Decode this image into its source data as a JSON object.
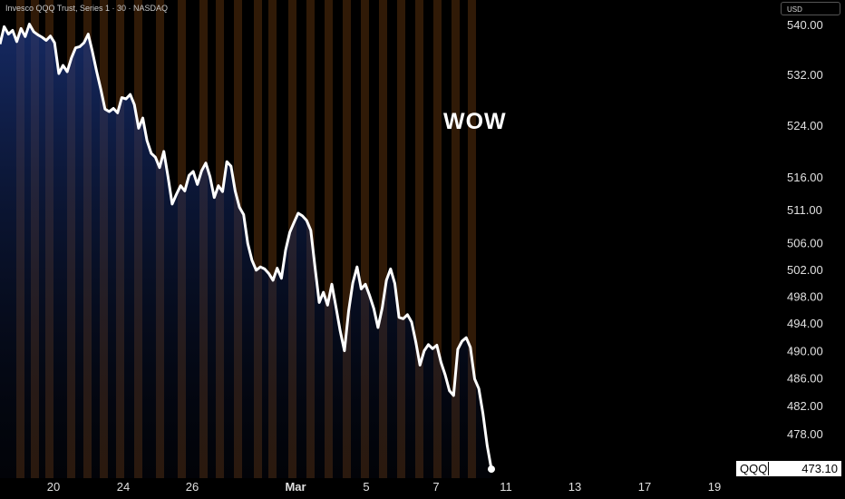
{
  "header": {
    "symbol_line": "Invesco QQQ Trust, Series 1 · 30 · NASDAQ"
  },
  "currency": "USD",
  "last_price": {
    "symbol": "QQQ",
    "value": "473.10"
  },
  "annotation": {
    "text": "WOW"
  },
  "colors": {
    "background": "#000000",
    "line": "#ffffff",
    "gradient_top": "#1e3a8a",
    "session_band": "#6b3a10",
    "axis_text": "#e0e0e0"
  },
  "chart_data": {
    "type": "line",
    "y_axis": {
      "ticks": [
        540.0,
        532.0,
        524.0,
        516.0,
        511.0,
        506.0,
        502.0,
        498.0,
        494.0,
        490.0,
        486.0,
        482.0,
        478.0
      ],
      "tick_labels": [
        "540.00",
        "532.00",
        "524.00",
        "516.00",
        "511.00",
        "506.00",
        "502.00",
        "498.00",
        "494.00",
        "490.00",
        "486.00",
        "482.00",
        "478.00"
      ],
      "scale": "log"
    },
    "x_axis": {
      "tick_labels": [
        "20",
        "24",
        "26",
        "Mar",
        "5",
        "7",
        "11",
        "13",
        "17",
        "19"
      ]
    },
    "series": [
      {
        "values": [
          537.0,
          539.8,
          538.6,
          539.2,
          537.4,
          539.5,
          538.2,
          540.2,
          539.0,
          538.5,
          538.1,
          537.6,
          538.3,
          537.2,
          532.3,
          533.6,
          532.6,
          534.8,
          536.4,
          536.6,
          537.2,
          538.6,
          535.8,
          532.7,
          529.8,
          526.7,
          526.3,
          526.8,
          526.1,
          528.5,
          528.3,
          529.0,
          527.4,
          523.7,
          525.3,
          521.8,
          519.8,
          519.2,
          517.6,
          520.1,
          516.2,
          512.0,
          513.5,
          514.8,
          514.0,
          516.4,
          517.0,
          515.0,
          517.1,
          518.3,
          516.2,
          513.0,
          514.8,
          513.9,
          518.5,
          517.8,
          514.0,
          511.5,
          510.4,
          506.0,
          503.5,
          502.0,
          502.5,
          502.2,
          501.5,
          500.5,
          502.3,
          500.8,
          505.0,
          507.7,
          509.2,
          510.6,
          510.2,
          509.5,
          508.0,
          502.5,
          497.2,
          498.7,
          496.8,
          499.9,
          496.5,
          493.0,
          490.1,
          495.9,
          500.1,
          502.5,
          499.2,
          499.9,
          498.2,
          496.3,
          493.5,
          496.4,
          500.5,
          502.2,
          500.0,
          495.0,
          494.8,
          495.4,
          494.3,
          491.4,
          488.0,
          490.1,
          491.0,
          490.4,
          490.9,
          488.4,
          486.6,
          484.3,
          483.6,
          490.3,
          491.5,
          492.0,
          490.6,
          486.0,
          484.6,
          481.0,
          476.4,
          473.1
        ]
      }
    ],
    "last_value": 473.1,
    "grid": false,
    "legend": "none"
  }
}
